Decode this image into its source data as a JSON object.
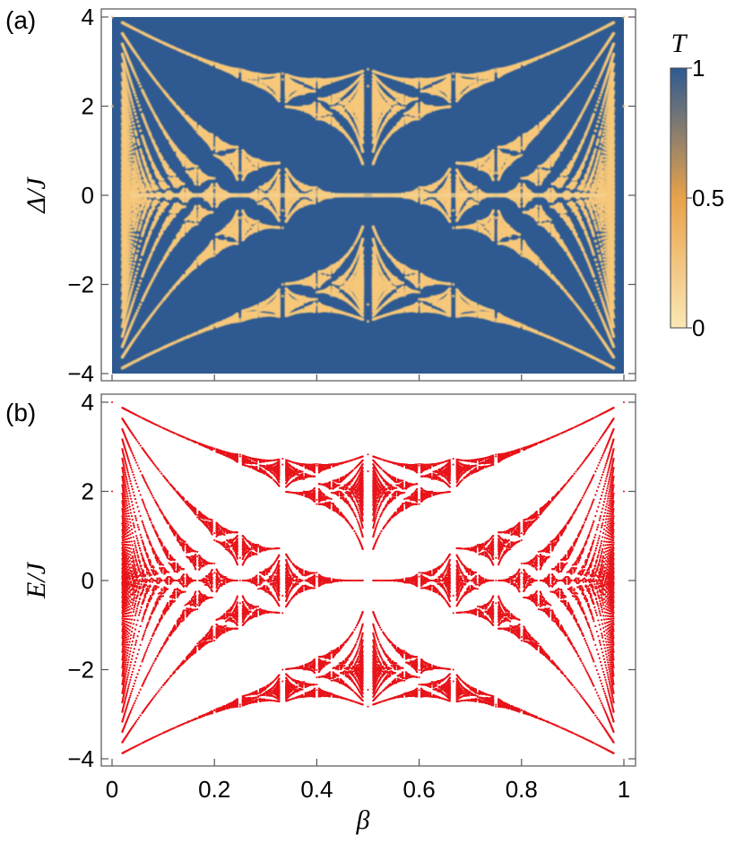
{
  "chart_data": [
    {
      "panel_label": "(a)",
      "type": "heatmap",
      "title": "",
      "xlabel": "",
      "ylabel": "Δ/J",
      "xlim": [
        0,
        1
      ],
      "ylim": [
        -4,
        4
      ],
      "y_ticks": [
        -4,
        -2,
        0,
        2,
        4
      ],
      "y_tick_labels": [
        "−4",
        "−2",
        "0",
        "2",
        "4"
      ],
      "x_tick_labels_shown": false,
      "grid": false,
      "colorbar": {
        "label": "T",
        "range": [
          0,
          1
        ],
        "ticks": [
          0,
          0.5,
          1
        ],
        "tick_labels": [
          "0",
          "0.5",
          "1"
        ],
        "colors": {
          "low": "#fbe7b4",
          "mid": "#e8a24a",
          "high": "#2e5a91"
        }
      },
      "background_value": 1,
      "description_of_features": "Transmission T over (beta, Delta/J); dips (T near 0) follow the Hofstadter butterfly band structure",
      "low_transmission_features": [
        {
          "feature": "central band at Δ/J = 0",
          "beta_range": [
            0.0,
            1.0
          ],
          "delta": 0
        },
        {
          "feature": "upper outer edge",
          "beta": [
            0.02,
            0.15,
            0.3,
            0.5
          ],
          "delta": [
            3.8,
            3.0,
            2.6,
            2.8
          ]
        },
        {
          "feature": "lower outer edge",
          "beta": [
            0.02,
            0.15,
            0.3,
            0.5
          ],
          "delta": [
            -3.8,
            -3.0,
            -2.6,
            -2.8
          ]
        }
      ]
    },
    {
      "panel_label": "(b)",
      "type": "scatter",
      "title": "",
      "xlabel": "β",
      "ylabel": "E/J",
      "xlim": [
        0,
        1
      ],
      "ylim": [
        -4,
        4
      ],
      "x_ticks": [
        0,
        0.2,
        0.4,
        0.6,
        0.8,
        1
      ],
      "x_tick_labels": [
        "0",
        "0.2",
        "0.4",
        "0.6",
        "0.8",
        "1"
      ],
      "y_ticks": [
        -4,
        -2,
        0,
        2,
        4
      ],
      "y_tick_labels": [
        "−4",
        "−2",
        "0",
        "2",
        "4"
      ],
      "grid": false,
      "marker_color": "#e8141a",
      "series": [
        {
          "values_note": "Hofstadter butterfly energy spectrum E/J versus flux β (symmetric in E and about β = 0.5)",
          "x": [
            0,
            0.02,
            0.1,
            0.2,
            0.25,
            0.3,
            0.333,
            0.4,
            0.5
          ],
          "band_top": [
            4,
            3.8,
            3.4,
            3.0,
            2.8,
            2.7,
            2.65,
            2.6,
            2.8
          ],
          "band_bottom": [
            -4,
            -3.8,
            -3.4,
            -3.0,
            -2.8,
            -2.7,
            -2.65,
            -2.6,
            -2.8
          ]
        }
      ]
    }
  ]
}
